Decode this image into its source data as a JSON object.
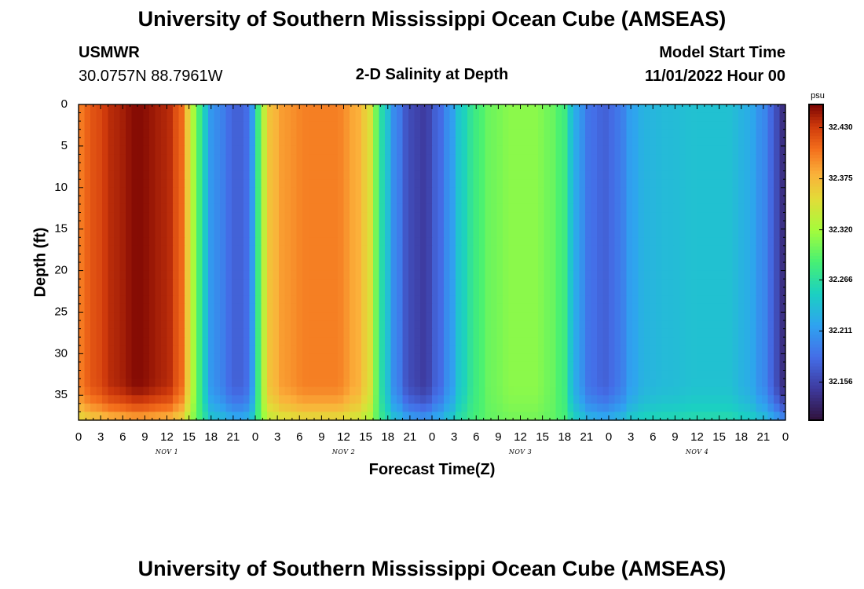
{
  "header": {
    "title": "University of Southern Mississippi Ocean Cube (AMSEAS)",
    "station_id": "USMWR",
    "station_coords": "30.0757N  88.7961W",
    "model_start_label": "Model Start Time",
    "model_start_value": "11/01/2022 Hour 00"
  },
  "footer": {
    "title_repeat": "University of Southern Mississippi Ocean Cube (AMSEAS)"
  },
  "chart_data": {
    "type": "heatmap",
    "title": "2-D Salinity at Depth",
    "xlabel": "Forecast Time(Z)",
    "ylabel": "Depth (ft)",
    "x_range_hours": [
      0,
      96
    ],
    "y_range_ft": [
      0,
      38
    ],
    "y_inverted": true,
    "x_tick_labels": [
      "0",
      "3",
      "6",
      "9",
      "12",
      "15",
      "18",
      "21",
      "0",
      "3",
      "6",
      "9",
      "12",
      "15",
      "18",
      "21",
      "0",
      "3",
      "6",
      "9",
      "12",
      "15",
      "18",
      "21",
      "0",
      "3",
      "6",
      "9",
      "12",
      "15",
      "18",
      "21",
      "0"
    ],
    "y_tick_labels": [
      "0",
      "5",
      "10",
      "15",
      "20",
      "25",
      "30",
      "35"
    ],
    "y_tick_values": [
      0,
      5,
      10,
      15,
      20,
      25,
      30,
      35
    ],
    "day_labels": [
      {
        "label": "NOV 1",
        "hour": 12
      },
      {
        "label": "NOV 2",
        "hour": 36
      },
      {
        "label": "NOV 3",
        "hour": 60
      },
      {
        "label": "NOV 4",
        "hour": 84
      }
    ],
    "colorbar": {
      "unit": "psu",
      "range": [
        32.115,
        32.455
      ],
      "tick_labels": [
        "32.430",
        "32.375",
        "32.320",
        "32.266",
        "32.211",
        "32.156"
      ],
      "tick_values": [
        32.43,
        32.375,
        32.32,
        32.266,
        32.211,
        32.156
      ]
    },
    "surface_salinity_keyframes": [
      [
        0,
        32.4
      ],
      [
        2,
        32.42
      ],
      [
        5,
        32.44
      ],
      [
        8,
        32.452
      ],
      [
        12,
        32.44
      ],
      [
        14,
        32.41
      ],
      [
        15,
        32.36
      ],
      [
        16,
        32.3
      ],
      [
        17,
        32.25
      ],
      [
        18,
        32.21
      ],
      [
        19.5,
        32.195
      ],
      [
        21,
        32.175
      ],
      [
        22.5,
        32.175
      ],
      [
        23.5,
        32.21
      ],
      [
        24.2,
        32.27
      ],
      [
        25,
        32.33
      ],
      [
        26,
        32.37
      ],
      [
        28,
        32.39
      ],
      [
        31,
        32.4
      ],
      [
        35,
        32.4
      ],
      [
        38,
        32.38
      ],
      [
        39.5,
        32.35
      ],
      [
        40.5,
        32.3
      ],
      [
        41.5,
        32.25
      ],
      [
        43,
        32.2
      ],
      [
        45,
        32.16
      ],
      [
        47,
        32.15
      ],
      [
        49,
        32.18
      ],
      [
        50.5,
        32.21
      ],
      [
        52,
        32.25
      ],
      [
        54,
        32.28
      ],
      [
        56,
        32.3
      ],
      [
        59,
        32.31
      ],
      [
        62,
        32.31
      ],
      [
        64,
        32.3
      ],
      [
        66,
        32.28
      ],
      [
        67,
        32.24
      ],
      [
        68,
        32.21
      ],
      [
        69.5,
        32.185
      ],
      [
        71.5,
        32.175
      ],
      [
        73.5,
        32.19
      ],
      [
        75,
        32.215
      ],
      [
        77,
        32.23
      ],
      [
        80,
        32.235
      ],
      [
        84,
        32.24
      ],
      [
        88,
        32.24
      ],
      [
        91,
        32.225
      ],
      [
        93,
        32.2
      ],
      [
        95,
        32.16
      ],
      [
        96,
        32.13
      ]
    ]
  }
}
